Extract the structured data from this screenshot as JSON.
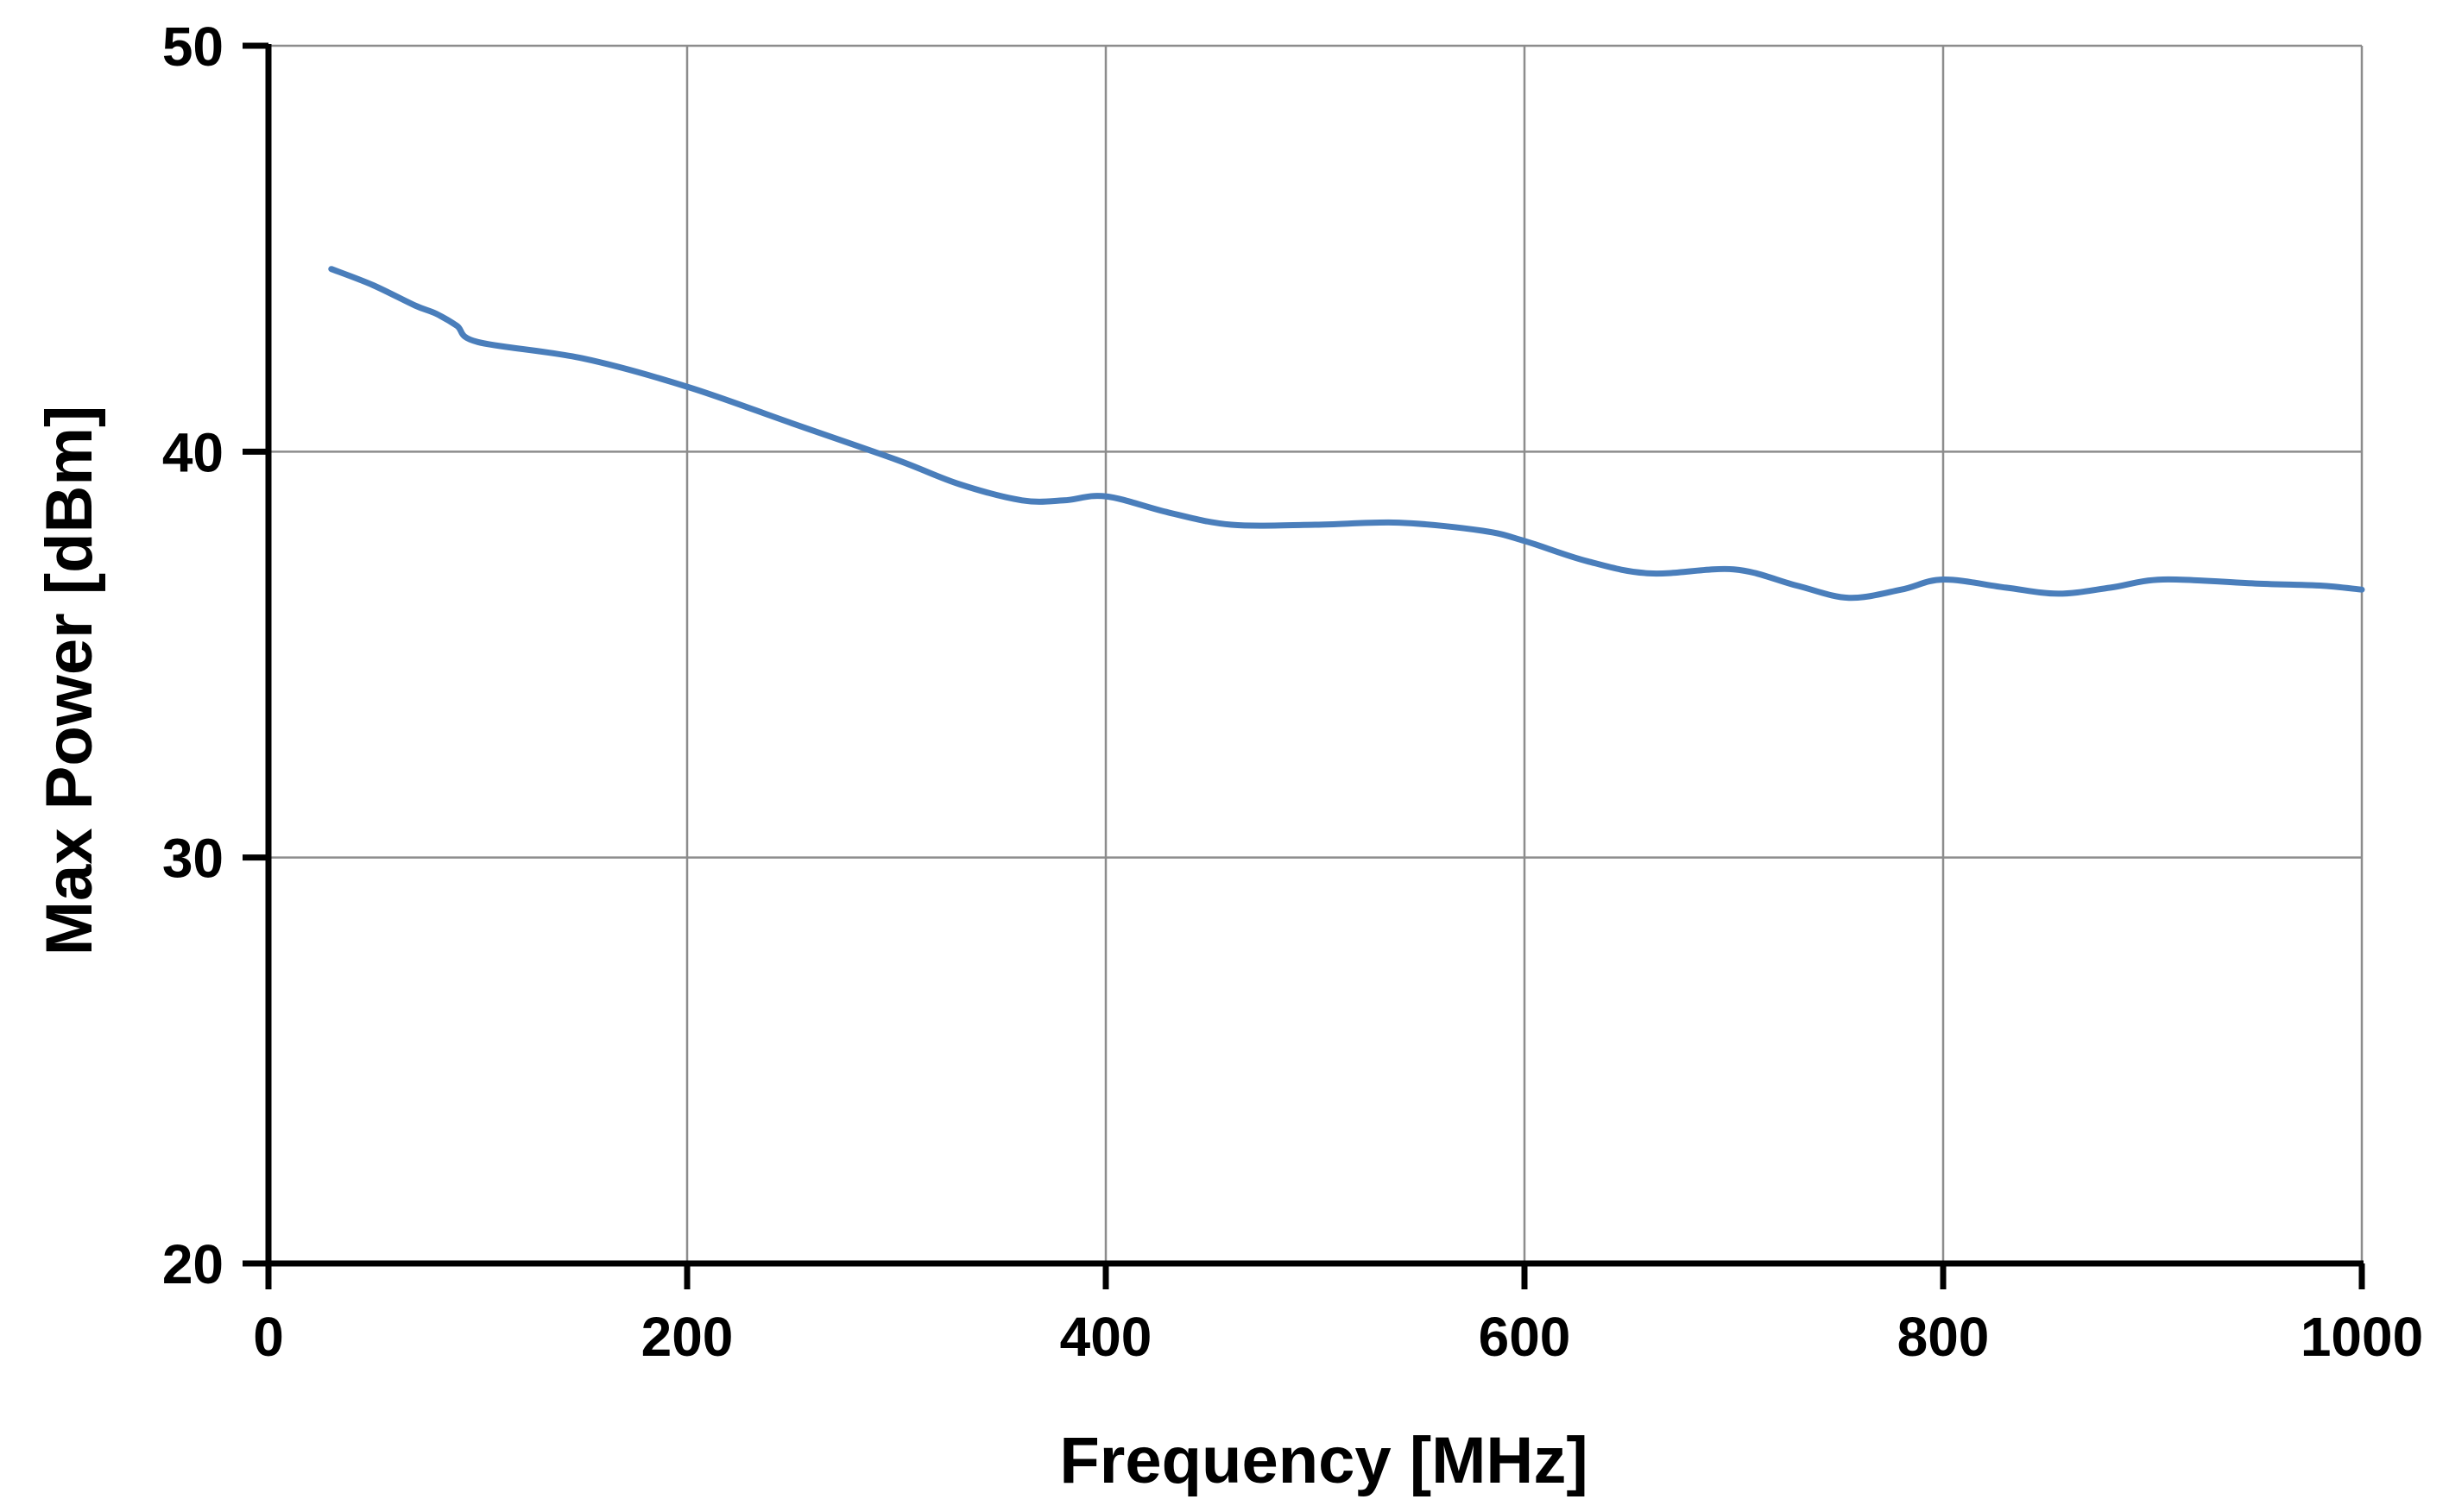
{
  "chart_data": {
    "type": "line",
    "title": "",
    "xlabel": "Frequency [MHz]",
    "ylabel": "Max Power [dBm]",
    "xlim": [
      0,
      1000
    ],
    "ylim": [
      20,
      50
    ],
    "x_ticks": [
      0,
      200,
      400,
      600,
      800,
      1000
    ],
    "y_ticks": [
      20,
      30,
      40,
      50
    ],
    "x_tick_labels": [
      "0",
      "200",
      "400",
      "600",
      "800",
      "1000"
    ],
    "y_tick_labels": [
      "20",
      "30",
      "40",
      "50"
    ],
    "grid": true,
    "legend": "none",
    "series": [
      {
        "color": "#4a7ebb",
        "x": [
          30,
          50,
          70,
          80,
          90,
          100,
          150,
          200,
          250,
          300,
          330,
          360,
          380,
          400,
          430,
          460,
          500,
          540,
          580,
          600,
          630,
          660,
          700,
          730,
          755,
          780,
          800,
          830,
          855,
          880,
          905,
          950,
          980,
          1000
        ],
        "y": [
          44.5,
          44.1,
          43.6,
          43.4,
          43.1,
          42.7,
          42.3,
          41.6,
          40.7,
          39.8,
          39.2,
          38.8,
          38.8,
          38.9,
          38.5,
          38.2,
          38.2,
          38.25,
          38.05,
          37.8,
          37.3,
          37.0,
          37.1,
          36.7,
          36.4,
          36.6,
          36.85,
          36.65,
          36.5,
          36.65,
          36.85,
          36.75,
          36.7,
          36.6
        ]
      }
    ]
  }
}
